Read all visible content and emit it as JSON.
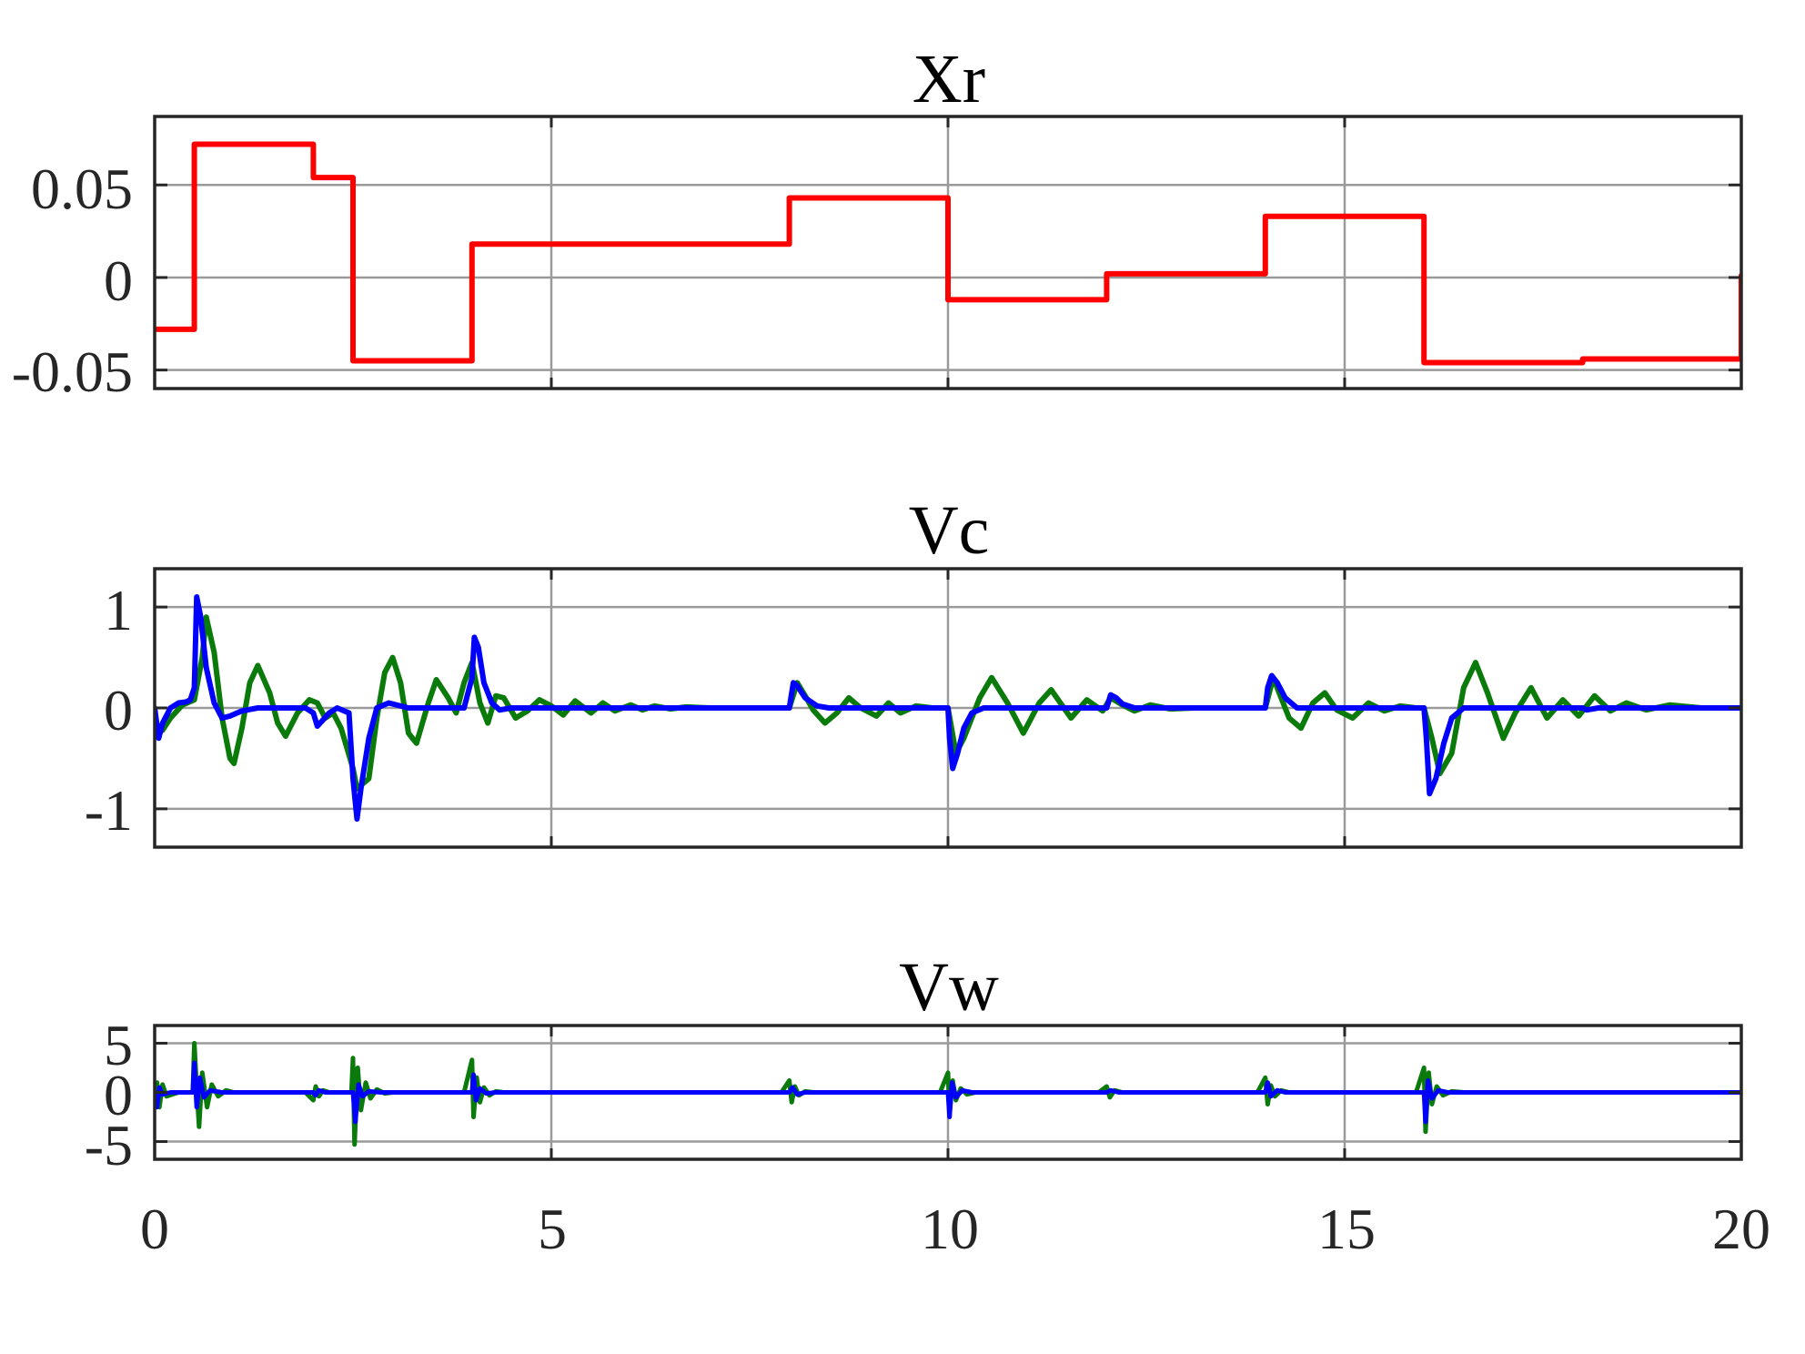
{
  "figure": {
    "x_tick_labels": [
      "0",
      "5",
      "10",
      "15",
      "20"
    ]
  },
  "chart_data": [
    {
      "type": "line",
      "title": "Xr",
      "xlim": [
        0,
        20
      ],
      "ylim": [
        -0.06,
        0.087
      ],
      "x_ticks": [
        0,
        5,
        10,
        15,
        20
      ],
      "y_ticks": [
        -0.05,
        0,
        0.05
      ],
      "y_tick_labels": [
        "-0.05",
        "0",
        "0.05"
      ],
      "show_x_tick_labels": false,
      "grid": true,
      "series": [
        {
          "color": "#ff0000",
          "step": true,
          "x": [
            0,
            0.5,
            2.0,
            2.5,
            4.0,
            8.0,
            10.0,
            12.0,
            14.0,
            16.0,
            18.0,
            20.0
          ],
          "y": [
            -0.028,
            0.072,
            0.054,
            -0.045,
            0.018,
            0.043,
            -0.012,
            0.002,
            0.033,
            -0.046,
            -0.044,
            0.001
          ]
        }
      ]
    },
    {
      "type": "line",
      "title": "Vc",
      "xlim": [
        0,
        20
      ],
      "ylim": [
        -1.38,
        1.38
      ],
      "x_ticks": [
        0,
        5,
        10,
        15,
        20
      ],
      "y_ticks": [
        -1,
        0,
        1
      ],
      "y_tick_labels": [
        "-1",
        "0",
        "1"
      ],
      "show_x_tick_labels": false,
      "grid": true,
      "series": [
        {
          "color": "#0a7a0a",
          "x": [
            0,
            0.1,
            0.2,
            0.35,
            0.5,
            0.6,
            0.65,
            0.75,
            0.85,
            0.95,
            1.0,
            1.1,
            1.2,
            1.3,
            1.45,
            1.55,
            1.65,
            1.8,
            1.95,
            2.05,
            2.15,
            2.25,
            2.35,
            2.5,
            2.55,
            2.7,
            2.8,
            2.9,
            3.0,
            3.1,
            3.2,
            3.3,
            3.45,
            3.55,
            3.7,
            3.8,
            3.9,
            4.0,
            4.1,
            4.2,
            4.3,
            4.4,
            4.55,
            4.7,
            4.85,
            5.0,
            5.15,
            5.3,
            5.5,
            5.65,
            5.8,
            6.0,
            6.15,
            6.3,
            6.5,
            6.7,
            7.0,
            7.5,
            8.0,
            8.1,
            8.2,
            8.3,
            8.45,
            8.6,
            8.75,
            8.9,
            9.1,
            9.25,
            9.4,
            9.6,
            9.8,
            10.0,
            10.1,
            10.2,
            10.4,
            10.55,
            10.75,
            10.95,
            11.15,
            11.3,
            11.55,
            11.75,
            11.95,
            12.05,
            12.2,
            12.35,
            12.55,
            12.8,
            13.1,
            13.5,
            14.0,
            14.1,
            14.2,
            14.3,
            14.45,
            14.6,
            14.75,
            14.9,
            15.1,
            15.3,
            15.5,
            15.7,
            15.9,
            16.0,
            16.1,
            16.2,
            16.35,
            16.5,
            16.65,
            16.8,
            17.0,
            17.15,
            17.35,
            17.55,
            17.75,
            17.95,
            18.15,
            18.35,
            18.55,
            18.8,
            19.1,
            19.5,
            20.0
          ],
          "y": [
            -0.25,
            -0.22,
            -0.1,
            0.03,
            0.08,
            0.5,
            0.9,
            0.55,
            -0.1,
            -0.5,
            -0.55,
            -0.2,
            0.25,
            0.42,
            0.15,
            -0.15,
            -0.28,
            -0.05,
            0.08,
            0.05,
            -0.1,
            -0.05,
            -0.2,
            -0.6,
            -0.8,
            -0.7,
            -0.1,
            0.35,
            0.5,
            0.25,
            -0.25,
            -0.35,
            0.05,
            0.28,
            0.1,
            -0.05,
            0.25,
            0.45,
            0.05,
            -0.15,
            0.12,
            0.1,
            -0.1,
            -0.03,
            0.08,
            0.02,
            -0.07,
            0.07,
            -0.05,
            0.05,
            -0.03,
            0.03,
            -0.02,
            0.02,
            -0.01,
            0.01,
            0.0,
            0.0,
            0.0,
            0.25,
            0.12,
            -0.02,
            -0.15,
            -0.05,
            0.1,
            0.0,
            -0.08,
            0.05,
            -0.05,
            0.02,
            0.0,
            0.0,
            -0.45,
            -0.3,
            0.1,
            0.3,
            0.05,
            -0.25,
            0.05,
            0.18,
            -0.1,
            0.08,
            -0.03,
            0.1,
            0.03,
            -0.03,
            0.03,
            -0.01,
            0.0,
            0.0,
            0.0,
            0.3,
            0.1,
            -0.1,
            -0.2,
            0.05,
            0.15,
            -0.02,
            -0.1,
            0.05,
            -0.03,
            0.02,
            0.0,
            0.0,
            -0.3,
            -0.65,
            -0.45,
            0.2,
            0.45,
            0.15,
            -0.3,
            -0.05,
            0.2,
            -0.1,
            0.08,
            -0.08,
            0.12,
            -0.03,
            0.05,
            -0.02,
            0.03,
            0.0,
            0.0
          ]
        },
        {
          "color": "#0000ff",
          "x": [
            0,
            0.05,
            0.1,
            0.2,
            0.3,
            0.4,
            0.45,
            0.5,
            0.53,
            0.58,
            0.65,
            0.75,
            0.85,
            0.95,
            1.1,
            1.3,
            1.6,
            1.9,
            2.0,
            2.05,
            2.12,
            2.2,
            2.3,
            2.45,
            2.5,
            2.55,
            2.6,
            2.7,
            2.8,
            2.95,
            3.2,
            3.5,
            3.9,
            4.0,
            4.03,
            4.08,
            4.15,
            4.25,
            4.35,
            4.5,
            4.8,
            5.5,
            8.0,
            8.05,
            8.1,
            8.2,
            8.35,
            8.5,
            8.8,
            9.5,
            10.0,
            10.02,
            10.06,
            10.12,
            10.2,
            10.3,
            10.45,
            10.7,
            11.5,
            12.0,
            12.05,
            12.12,
            12.2,
            12.35,
            12.6,
            13.5,
            14.0,
            14.03,
            14.08,
            14.15,
            14.25,
            14.4,
            14.7,
            15.5,
            16.0,
            16.03,
            16.07,
            16.15,
            16.25,
            16.35,
            16.5,
            16.8,
            17.5,
            18.0,
            18.05,
            18.2,
            19.0,
            20.0
          ],
          "y": [
            0.0,
            -0.3,
            -0.15,
            0.0,
            0.05,
            0.06,
            0.08,
            0.2,
            1.1,
            0.9,
            0.4,
            0.05,
            -0.1,
            -0.08,
            -0.03,
            0.0,
            0.0,
            0.0,
            -0.05,
            -0.18,
            -0.12,
            -0.05,
            0.0,
            -0.05,
            -0.7,
            -1.1,
            -0.8,
            -0.3,
            0.0,
            0.05,
            0.0,
            0.0,
            0.0,
            0.3,
            0.7,
            0.6,
            0.25,
            0.05,
            -0.02,
            0.0,
            0.0,
            0.0,
            0.0,
            0.25,
            0.22,
            0.1,
            0.02,
            0.0,
            0.0,
            0.0,
            0.0,
            -0.3,
            -0.6,
            -0.45,
            -0.2,
            -0.05,
            0.0,
            0.0,
            0.0,
            0.0,
            0.13,
            0.1,
            0.04,
            0.0,
            0.0,
            0.0,
            0.0,
            0.2,
            0.32,
            0.25,
            0.1,
            0.0,
            0.0,
            0.0,
            0.0,
            -0.3,
            -0.85,
            -0.7,
            -0.35,
            -0.1,
            0.0,
            0.0,
            0.0,
            0.0,
            -0.02,
            0.0,
            0.0,
            0.0
          ]
        }
      ]
    },
    {
      "type": "line",
      "title": "Vw",
      "xlim": [
        0,
        20
      ],
      "ylim": [
        -6.8,
        6.8
      ],
      "x_ticks": [
        0,
        5,
        10,
        15,
        20
      ],
      "y_ticks": [
        -5,
        0,
        5
      ],
      "y_tick_labels": [
        "-5",
        "0",
        "5"
      ],
      "show_x_tick_labels": true,
      "grid": true,
      "series": [
        {
          "color": "#0a7a0a",
          "x": [
            0,
            0.03,
            0.06,
            0.1,
            0.15,
            0.3,
            0.48,
            0.5,
            0.52,
            0.56,
            0.6,
            0.66,
            0.72,
            0.8,
            0.9,
            1.0,
            1.9,
            2.0,
            2.03,
            2.07,
            2.12,
            2.2,
            2.4,
            2.48,
            2.5,
            2.52,
            2.56,
            2.6,
            2.66,
            2.72,
            2.8,
            2.9,
            3.0,
            3.9,
            4.0,
            4.02,
            4.06,
            4.1,
            4.15,
            4.22,
            4.3,
            4.4,
            4.5,
            7.9,
            8.0,
            8.03,
            8.07,
            8.12,
            8.2,
            8.3,
            9.9,
            10.0,
            10.02,
            10.06,
            10.1,
            10.16,
            10.24,
            10.35,
            11.9,
            12.0,
            12.04,
            12.1,
            12.2,
            13.9,
            14.0,
            14.03,
            14.07,
            14.12,
            14.2,
            14.3,
            15.9,
            16.0,
            16.02,
            16.06,
            16.1,
            16.16,
            16.24,
            16.35,
            16.5,
            20.0
          ],
          "y": [
            0.0,
            1.0,
            -1.5,
            0.8,
            -0.4,
            0.0,
            0.0,
            5.0,
            2.0,
            -3.5,
            2.0,
            -1.5,
            0.8,
            -0.4,
            0.2,
            0.0,
            0.0,
            -0.8,
            0.6,
            -0.4,
            0.2,
            0.0,
            0.0,
            0.0,
            3.5,
            -5.3,
            2.5,
            -1.8,
            1.0,
            -0.6,
            0.3,
            -0.1,
            0.0,
            0.0,
            3.3,
            -2.5,
            1.5,
            -1.0,
            0.5,
            -0.3,
            0.1,
            0.0,
            0.0,
            0.0,
            1.2,
            -1.0,
            0.6,
            -0.3,
            0.1,
            0.0,
            0.0,
            2.0,
            -2.0,
            1.2,
            -0.8,
            0.4,
            -0.2,
            0.0,
            0.0,
            0.6,
            -0.5,
            0.2,
            0.0,
            0.0,
            1.5,
            -1.2,
            0.7,
            -0.4,
            0.2,
            0.0,
            0.0,
            2.5,
            -4.0,
            2.0,
            -1.2,
            0.6,
            -0.3,
            0.1,
            0.0,
            0.0
          ]
        },
        {
          "color": "#0000ff",
          "x": [
            0,
            0.03,
            0.06,
            0.1,
            0.2,
            0.48,
            0.5,
            0.53,
            0.57,
            0.62,
            0.7,
            0.85,
            2.0,
            2.03,
            2.07,
            2.15,
            2.48,
            2.5,
            2.53,
            2.57,
            2.62,
            2.7,
            2.85,
            4.0,
            4.02,
            4.05,
            4.1,
            4.18,
            4.3,
            8.0,
            8.04,
            8.1,
            8.2,
            10.0,
            10.02,
            10.05,
            10.1,
            10.18,
            10.3,
            12.0,
            12.05,
            12.15,
            14.0,
            14.03,
            14.07,
            14.15,
            14.25,
            16.0,
            16.02,
            16.05,
            16.1,
            16.18,
            16.3,
            20.0
          ],
          "y": [
            0.0,
            -1.5,
            0.5,
            -0.2,
            0.0,
            0.0,
            3.0,
            -1.5,
            1.5,
            -0.5,
            0.2,
            0.0,
            0.0,
            -0.3,
            0.2,
            0.0,
            0.0,
            0.0,
            -3.0,
            0.8,
            -0.4,
            0.1,
            0.0,
            0.0,
            1.8,
            -0.8,
            0.4,
            -0.1,
            0.0,
            0.0,
            0.5,
            -0.2,
            0.0,
            0.0,
            -2.5,
            1.0,
            -0.5,
            0.2,
            0.0,
            0.0,
            0.2,
            0.0,
            0.0,
            1.0,
            -0.4,
            0.2,
            0.0,
            0.0,
            -3.0,
            1.2,
            -0.6,
            0.2,
            0.0,
            0.0
          ]
        }
      ]
    }
  ]
}
